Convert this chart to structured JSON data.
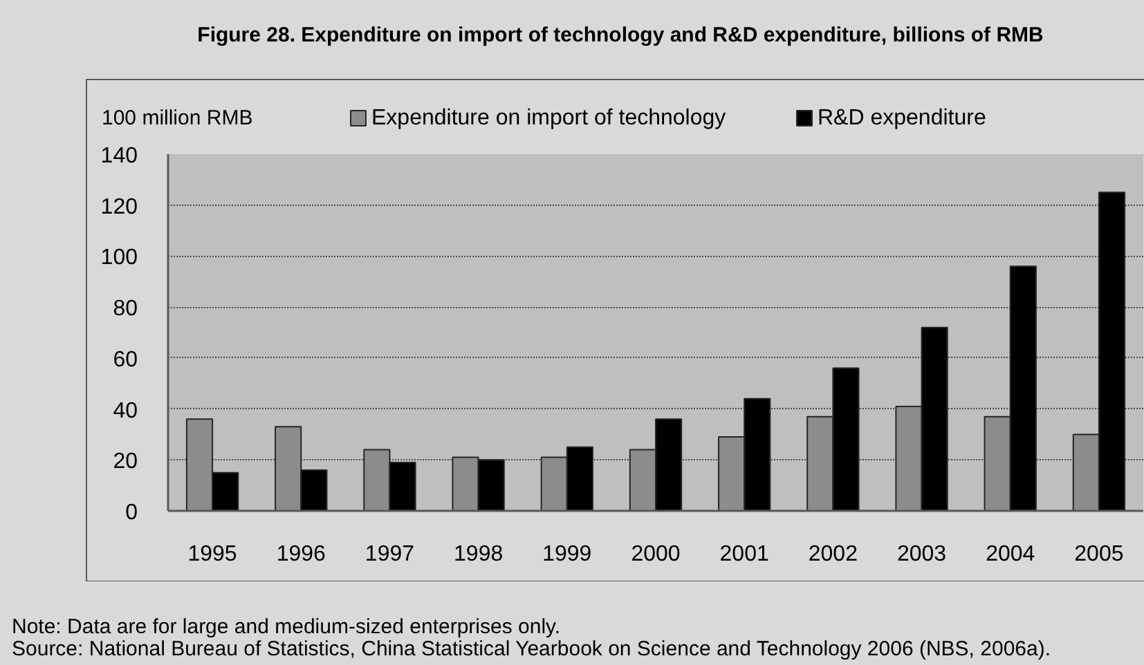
{
  "chart_data": {
    "type": "bar",
    "title": "Figure 28. Expenditure on import of technology and R&D expenditure, billions of RMB",
    "ylabel": "100 million RMB",
    "categories": [
      "1995",
      "1996",
      "1997",
      "1998",
      "1999",
      "2000",
      "2001",
      "2002",
      "2003",
      "2004",
      "2005"
    ],
    "series": [
      {
        "name": "Expenditure on import of technology",
        "color": "#8c8c8c",
        "values": [
          36,
          33,
          24,
          21,
          21,
          24,
          29,
          37,
          41,
          37,
          30
        ]
      },
      {
        "name": "R&D expenditure",
        "color": "#000000",
        "values": [
          15,
          16,
          19,
          20,
          25,
          36,
          44,
          56,
          72,
          96,
          125
        ]
      }
    ],
    "ylim": [
      0,
      140
    ],
    "yticks": [
      0,
      20,
      40,
      60,
      80,
      100,
      120,
      140
    ],
    "grid": "y",
    "legend": "top",
    "annotations": [
      "Note: Data are for large and medium-sized enterprises only.",
      "Source: National Bureau of Statistics, China Statistical Yearbook on Science and Technology 2006 (NBS, 2006a)."
    ]
  }
}
